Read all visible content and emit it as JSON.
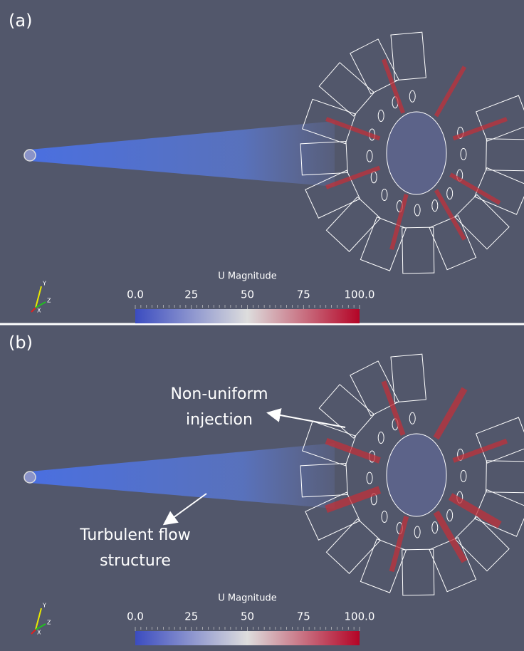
{
  "panels": [
    {
      "label": "(a)",
      "colorbar": {
        "title": "U Magnitude",
        "ticks": [
          "0.0",
          "25",
          "50",
          "75",
          "100.0"
        ]
      },
      "axes": [
        "Y",
        "X",
        "Z"
      ]
    },
    {
      "label": "(b)",
      "colorbar": {
        "title": "U Magnitude",
        "ticks": [
          "0.0",
          "25",
          "50",
          "75",
          "100.0"
        ]
      },
      "axes": [
        "Y",
        "X",
        "Z"
      ],
      "annotations": [
        {
          "lines": [
            "Non-uniform",
            "injection"
          ]
        },
        {
          "lines": [
            "Turbulent flow",
            "structure"
          ]
        }
      ]
    }
  ]
}
